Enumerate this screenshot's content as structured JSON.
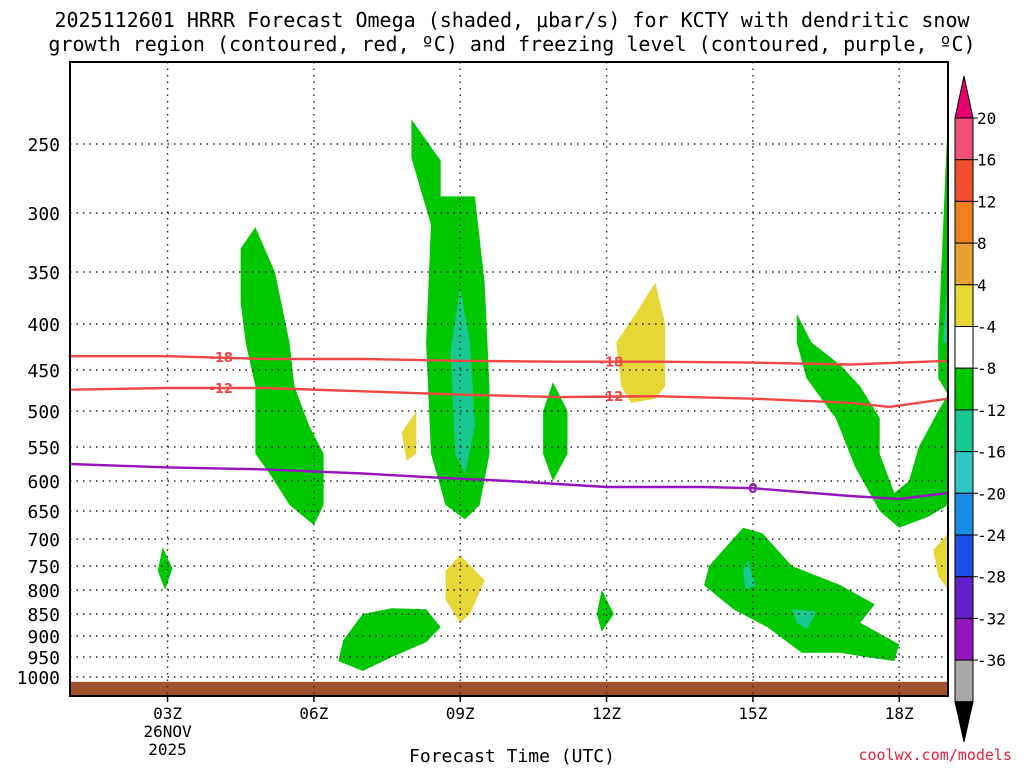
{
  "chart_data": {
    "type": "heatmap",
    "title_line1": "2025112601 HRRR Forecast Omega (shaded, μbar/s) for KCTY with dendritic snow",
    "title_line2": "growth region (contoured, red, ºC) and freezing level (contoured, purple, ºC)",
    "xlabel": "Forecast Time (UTC)",
    "ylabel": "",
    "x_range_hours": [
      1,
      19
    ],
    "x_ticks": [
      {
        "hour": 3,
        "label": "03Z"
      },
      {
        "hour": 6,
        "label": "06Z"
      },
      {
        "hour": 9,
        "label": "09Z"
      },
      {
        "hour": 12,
        "label": "12Z"
      },
      {
        "hour": 15,
        "label": "15Z"
      },
      {
        "hour": 18,
        "label": "18Z"
      }
    ],
    "date_label_line1": "26NOV",
    "date_label_line2": "2025",
    "y_ticks": [
      250,
      300,
      350,
      400,
      450,
      500,
      550,
      600,
      650,
      700,
      750,
      800,
      850,
      900,
      950,
      1000
    ],
    "y_range_hPa": [
      200,
      1025
    ],
    "colorbar": {
      "labels": [
        "20",
        "16",
        "12",
        "8",
        "4",
        "-4",
        "-8",
        "-12",
        "-16",
        "-20",
        "-24",
        "-28",
        "-32",
        "-36"
      ],
      "colors": [
        "#f0507a",
        "#f05030",
        "#f08020",
        "#e8a030",
        "#e6d636",
        "#ffffff",
        "#00c800",
        "#18c890",
        "#30c4c4",
        "#1a8ce6",
        "#1e4ee6",
        "#6420c8",
        "#9614be",
        "#a8a8a8"
      ],
      "top_arrow_color": "#e8006e",
      "bottom_arrow_color": "#000000"
    },
    "contours": [
      {
        "label": "-18",
        "color": "#f04646",
        "points": [
          [
            1.0,
            435
          ],
          [
            3.0,
            435
          ],
          [
            5.0,
            438
          ],
          [
            7.0,
            438
          ],
          [
            9.0,
            440
          ],
          [
            11.0,
            441
          ],
          [
            13.0,
            441
          ],
          [
            15.0,
            442
          ],
          [
            17.0,
            444
          ],
          [
            19.0,
            440
          ]
        ]
      },
      {
        "label": "-12",
        "color": "#f04646",
        "points": [
          [
            1.0,
            474
          ],
          [
            3.0,
            472
          ],
          [
            5.0,
            472
          ],
          [
            7.0,
            476
          ],
          [
            9.0,
            480
          ],
          [
            11.0,
            483
          ],
          [
            13.0,
            482
          ],
          [
            15.0,
            485
          ],
          [
            17.0,
            490
          ],
          [
            17.8,
            495
          ],
          [
            19.0,
            485
          ]
        ]
      },
      {
        "label": "0",
        "color": "#9614be",
        "points": [
          [
            1.0,
            575
          ],
          [
            3.0,
            580
          ],
          [
            5.0,
            583
          ],
          [
            7.0,
            589
          ],
          [
            8.5,
            595
          ],
          [
            10.0,
            600
          ],
          [
            12.0,
            610
          ],
          [
            14.0,
            610
          ],
          [
            15.0,
            612
          ],
          [
            17.0,
            625
          ],
          [
            18.0,
            630
          ],
          [
            19.0,
            620
          ]
        ]
      }
    ],
    "contour_labels": [
      {
        "text": "-18",
        "hour": 4.1,
        "hPa": 436
      },
      {
        "text": "-18",
        "hour": 12.1,
        "hPa": 441
      },
      {
        "text": "-12",
        "hour": 4.1,
        "hPa": 472
      },
      {
        "text": "-12",
        "hour": 12.1,
        "hPa": 482
      },
      {
        "text": "0",
        "hour": 15.0,
        "hPa": 612
      }
    ],
    "omega_regions": [
      {
        "sign": "upward",
        "range": "-4 to -8",
        "color": "#00c800",
        "points": [
          [
            4.5,
            330
          ],
          [
            4.8,
            312
          ],
          [
            5.2,
            350
          ],
          [
            5.5,
            420
          ],
          [
            5.6,
            470
          ],
          [
            5.9,
            520
          ],
          [
            6.2,
            560
          ],
          [
            6.2,
            640
          ],
          [
            6.0,
            675
          ],
          [
            5.5,
            640
          ],
          [
            5.1,
            590
          ],
          [
            4.8,
            560
          ],
          [
            4.8,
            470
          ],
          [
            4.6,
            420
          ],
          [
            4.5,
            380
          ]
        ]
      },
      {
        "sign": "upward",
        "range": "-4 to -8",
        "color": "#00c800",
        "points": [
          [
            8.0,
            235
          ],
          [
            8.6,
            262
          ],
          [
            8.6,
            288
          ],
          [
            9.3,
            288
          ],
          [
            9.5,
            360
          ],
          [
            9.6,
            470
          ],
          [
            9.6,
            560
          ],
          [
            9.4,
            640
          ],
          [
            9.1,
            665
          ],
          [
            8.7,
            640
          ],
          [
            8.4,
            560
          ],
          [
            8.3,
            420
          ],
          [
            8.4,
            310
          ],
          [
            8.0,
            260
          ]
        ]
      },
      {
        "sign": "upward",
        "range": "-8 to -12",
        "color": "#18c890",
        "points": [
          [
            9.0,
            365
          ],
          [
            9.2,
            420
          ],
          [
            9.3,
            520
          ],
          [
            9.1,
            590
          ],
          [
            8.9,
            560
          ],
          [
            8.8,
            430
          ]
        ]
      },
      {
        "sign": "upward",
        "range": "-4 to -8",
        "color": "#00c800",
        "points": [
          [
            10.9,
            465
          ],
          [
            11.2,
            500
          ],
          [
            11.2,
            560
          ],
          [
            10.9,
            600
          ],
          [
            10.7,
            560
          ],
          [
            10.7,
            500
          ]
        ]
      },
      {
        "sign": "upward",
        "range": "-4 to -8",
        "color": "#00c800",
        "points": [
          [
            2.9,
            715
          ],
          [
            3.1,
            755
          ],
          [
            2.95,
            800
          ],
          [
            2.8,
            760
          ]
        ]
      },
      {
        "sign": "upward",
        "range": "-4 to -8",
        "color": "#00c800",
        "points": [
          [
            6.6,
            910
          ],
          [
            7.0,
            850
          ],
          [
            7.6,
            838
          ],
          [
            8.3,
            840
          ],
          [
            8.6,
            880
          ],
          [
            8.3,
            915
          ],
          [
            7.6,
            950
          ],
          [
            7.0,
            985
          ],
          [
            6.5,
            960
          ]
        ]
      },
      {
        "sign": "upward",
        "range": "-4 to -8",
        "color": "#00c800",
        "points": [
          [
            11.9,
            800
          ],
          [
            12.15,
            850
          ],
          [
            11.9,
            890
          ],
          [
            11.8,
            850
          ]
        ]
      },
      {
        "sign": "upward",
        "range": "-4 to -8",
        "color": "#00c800",
        "points": [
          [
            14.1,
            750
          ],
          [
            14.8,
            680
          ],
          [
            15.2,
            690
          ],
          [
            15.8,
            750
          ],
          [
            16.8,
            790
          ],
          [
            17.5,
            830
          ],
          [
            17.2,
            870
          ],
          [
            18.0,
            920
          ],
          [
            17.9,
            960
          ],
          [
            17.3,
            950
          ],
          [
            16.8,
            940
          ],
          [
            16.0,
            940
          ],
          [
            15.3,
            880
          ],
          [
            14.6,
            840
          ],
          [
            14.0,
            790
          ]
        ]
      },
      {
        "sign": "upward",
        "range": "-8 to -12",
        "color": "#18c890",
        "points": [
          [
            14.9,
            740
          ],
          [
            15.05,
            790
          ],
          [
            14.85,
            800
          ],
          [
            14.8,
            760
          ]
        ]
      },
      {
        "sign": "upward",
        "range": "-8 to -12",
        "color": "#18c890",
        "points": [
          [
            15.8,
            840
          ],
          [
            16.3,
            845
          ],
          [
            16.1,
            885
          ],
          [
            15.9,
            870
          ]
        ]
      },
      {
        "sign": "upward",
        "range": "-4 to -8",
        "color": "#00c800",
        "points": [
          [
            15.9,
            390
          ],
          [
            16.2,
            420
          ],
          [
            16.8,
            445
          ],
          [
            17.2,
            470
          ],
          [
            17.6,
            510
          ],
          [
            17.6,
            560
          ],
          [
            17.9,
            620
          ],
          [
            18.2,
            600
          ],
          [
            18.4,
            550
          ],
          [
            18.8,
            500
          ],
          [
            19.0,
            480
          ],
          [
            19.0,
            640
          ],
          [
            18.6,
            660
          ],
          [
            18.0,
            680
          ],
          [
            17.6,
            650
          ],
          [
            17.1,
            580
          ],
          [
            16.7,
            510
          ],
          [
            16.1,
            460
          ],
          [
            15.9,
            420
          ]
        ]
      },
      {
        "sign": "upward",
        "range": "-4 to -8",
        "color": "#00c800",
        "points": [
          [
            18.8,
            420
          ],
          [
            19.0,
            230
          ],
          [
            19.0,
            480
          ],
          [
            18.8,
            460
          ]
        ]
      },
      {
        "sign": "upward",
        "range": "-8 to -12",
        "color": "#18c890",
        "points": [
          [
            18.95,
            380
          ],
          [
            19.0,
            360
          ],
          [
            19.0,
            420
          ],
          [
            18.9,
            420
          ]
        ]
      },
      {
        "sign": "downward",
        "range": "4 to 8",
        "color": "#e6d636",
        "points": [
          [
            12.2,
            420
          ],
          [
            12.6,
            390
          ],
          [
            13.0,
            360
          ],
          [
            13.2,
            400
          ],
          [
            13.2,
            470
          ],
          [
            13.0,
            485
          ],
          [
            12.5,
            490
          ],
          [
            12.3,
            470
          ]
        ]
      },
      {
        "sign": "downward",
        "range": "4 to 8",
        "color": "#e6d636",
        "points": [
          [
            7.8,
            530
          ],
          [
            8.1,
            500
          ],
          [
            8.1,
            560
          ],
          [
            7.9,
            570
          ]
        ]
      },
      {
        "sign": "downward",
        "range": "4 to 8",
        "color": "#e6d636",
        "points": [
          [
            8.7,
            760
          ],
          [
            9.0,
            730
          ],
          [
            9.5,
            780
          ],
          [
            9.2,
            850
          ],
          [
            9.0,
            870
          ],
          [
            8.7,
            820
          ]
        ]
      },
      {
        "sign": "downward",
        "range": "4 to 8",
        "color": "#e6d636",
        "points": [
          [
            18.7,
            720
          ],
          [
            19.0,
            690
          ],
          [
            19.0,
            800
          ],
          [
            18.8,
            770
          ]
        ]
      }
    ],
    "terrain_color": "#a0522d"
  },
  "footer": {
    "credit": "coolwx.com/models"
  }
}
